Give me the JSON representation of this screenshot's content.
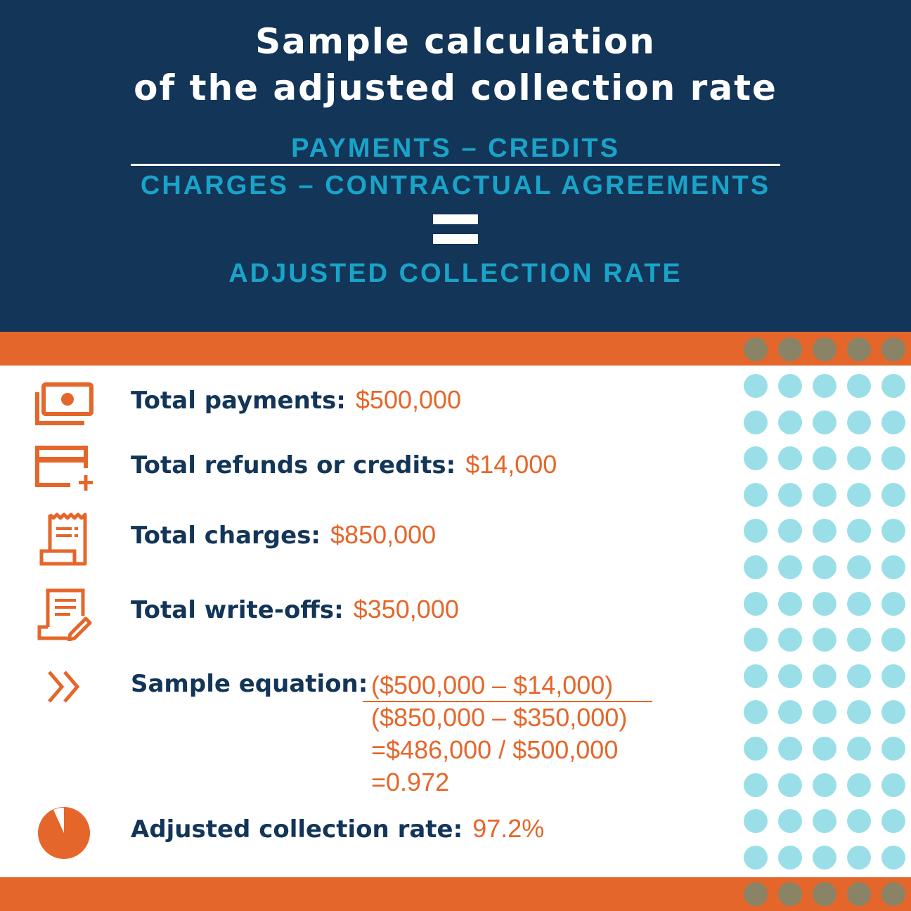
{
  "header": {
    "title_line1": "Sample calculation",
    "title_line2": "of the adjusted collection rate",
    "numerator": "PAYMENTS – CREDITS",
    "denominator": "CHARGES – CONTRACTUAL AGREEMENTS",
    "result": "ADJUSTED COLLECTION RATE"
  },
  "items": {
    "payments": {
      "label": "Total payments:",
      "value": "$500,000",
      "icon": "money-icon"
    },
    "refunds": {
      "label": "Total refunds or credits:",
      "value": "$14,000",
      "icon": "credit-card-plus-icon"
    },
    "charges": {
      "label": "Total charges:",
      "value": "$850,000",
      "icon": "receipt-icon"
    },
    "writeoffs": {
      "label": "Total write-offs:",
      "value": "$350,000",
      "icon": "document-edit-icon"
    },
    "equation": {
      "label": "Sample equation:",
      "numerator": "($500,000 – $14,000)",
      "denominator": "($850,000 – $350,000)",
      "step1": "=$486,000 / $500,000",
      "step2": "=0.972",
      "icon": "double-chevron-right-icon"
    },
    "rate": {
      "label": "Adjusted collection rate:",
      "value": "97.2%",
      "icon": "pie-chart-icon"
    }
  },
  "colors": {
    "navy": "#123558",
    "orange": "#e5662a",
    "cyan": "#1aa3c9",
    "dot_cyan": "#9adfe8",
    "dot_olive": "#8a8366"
  }
}
